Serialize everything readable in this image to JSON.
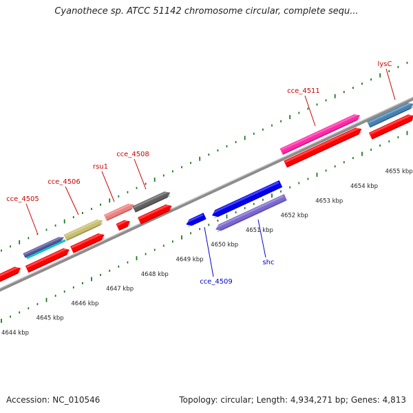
{
  "title": "Cyanothece sp. ATCC 51142 chromosome circular, complete sequ...",
  "footer": {
    "accession": "Accession: NC_010546",
    "summary": "Topology: circular; Length: 4,934,271 bp; Genes: 4,813"
  },
  "colors": {
    "backbone": "#8c8c8c",
    "tick": "#1a7a1a",
    "forward_label": "#cc0000",
    "reverse_label": "#0000cc",
    "cds": "#ff0000"
  },
  "scale_labels": [
    "4644 kbp",
    "4645 kbp",
    "4646 kbp",
    "4647 kbp",
    "4648 kbp",
    "4649 kbp",
    "4650 kbp",
    "4651 kbp",
    "4652 kbp",
    "4653 kbp",
    "4654 kbp",
    "4655 kbp"
  ],
  "genes_forward": [
    {
      "label": "cce_4505",
      "color": "#5a5aa0"
    },
    {
      "label": "cce_4506",
      "color": "#c8c070"
    },
    {
      "label": "rsu1",
      "color": "#f08080"
    },
    {
      "label": "cce_4508",
      "color": "#606060"
    },
    {
      "label": "cce_4511",
      "color": "#ff2aa8"
    },
    {
      "label": "lysC",
      "color": "#4682b4"
    }
  ],
  "genes_reverse": [
    {
      "label": "cce_4509",
      "color": "#0000ee"
    },
    {
      "label": "shc",
      "color": "#7b68d0"
    }
  ]
}
